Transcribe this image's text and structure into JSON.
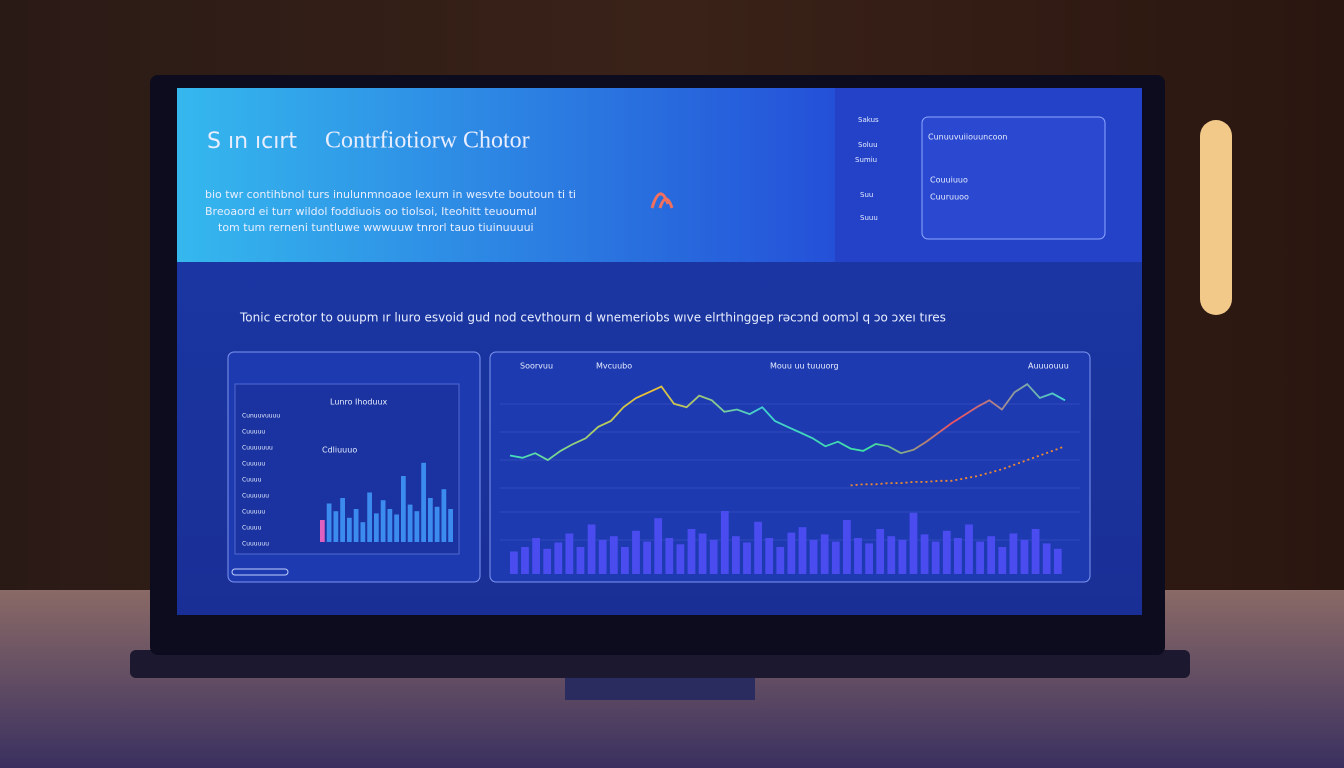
{
  "header": {
    "title_prefix": "S ın ıcırt",
    "title": "Contrfiotiorw Chotor",
    "lines": [
      "bio twr contihbnol turs inulunmnoaoe lexum in wesvte boutoun ti ti",
      "Breoaord ei turr wildol foddiuois oo tiolsoi, Iteohitt teuoumul",
      "tom tum rerneni tuntluwe wwwuuw tnrorl tauo tiuinuuuui"
    ]
  },
  "side": {
    "labels": [
      "Sakus",
      "Soluu",
      "Sumiu",
      "Suu",
      "Suuu"
    ],
    "card": [
      "Cunuuvuiiouuncoon",
      "Couuiuuo",
      "Cuuruuoo"
    ]
  },
  "headline": "Tonic ecrotor to ouupm ır lıuro esvoid gud nod cevthourn d wnemeriobs wıve elrthinggep rəcɔnd oomɔl q ɔo ɔxeı tıres",
  "left_panel": {
    "title": "Lunro Ihoduux",
    "subtitle": "Cdliuuuo",
    "items": [
      "Cunuuvuuuu",
      "Cuuuuu",
      "Cuuuuuuu",
      "Cuuuuu",
      "Cuuuu",
      "Cuuuuuu",
      "Cuuuuu",
      "Cuuuu",
      "Cuuuuuu"
    ],
    "bars": [
      20,
      35,
      28,
      40,
      22,
      30,
      18,
      45,
      26,
      38,
      30,
      25,
      60,
      34,
      28,
      72,
      40,
      32,
      48,
      30
    ]
  },
  "main_panel": {
    "legend": [
      "Soorvuu",
      "Mvcuubo",
      "Mouu uu tuuuorg",
      "Auuuouuu"
    ],
    "line": [
      30,
      28,
      32,
      26,
      34,
      40,
      45,
      55,
      60,
      72,
      80,
      85,
      90,
      75,
      72,
      82,
      78,
      68,
      70,
      66,
      72,
      60,
      55,
      50,
      45,
      38,
      42,
      36,
      34,
      40,
      38,
      32,
      35,
      42,
      50,
      58,
      65,
      72,
      78,
      70,
      85,
      92,
      80,
      84,
      78
    ],
    "trend": [
      null,
      null,
      null,
      null,
      null,
      null,
      null,
      null,
      null,
      null,
      null,
      null,
      null,
      null,
      null,
      null,
      null,
      null,
      null,
      null,
      null,
      null,
      null,
      null,
      null,
      null,
      null,
      4,
      5,
      5,
      6,
      6,
      7,
      7,
      8,
      8,
      10,
      12,
      15,
      18,
      22,
      26,
      30,
      34,
      38
    ],
    "volume": [
      25,
      30,
      40,
      28,
      35,
      45,
      30,
      55,
      38,
      42,
      30,
      48,
      36,
      62,
      40,
      33,
      50,
      45,
      38,
      70,
      42,
      35,
      58,
      40,
      30,
      46,
      52,
      38,
      44,
      36,
      60,
      40,
      34,
      50,
      42,
      38,
      68,
      44,
      36,
      48,
      40,
      55,
      36,
      42,
      30,
      45,
      38,
      50,
      34,
      28
    ]
  }
}
